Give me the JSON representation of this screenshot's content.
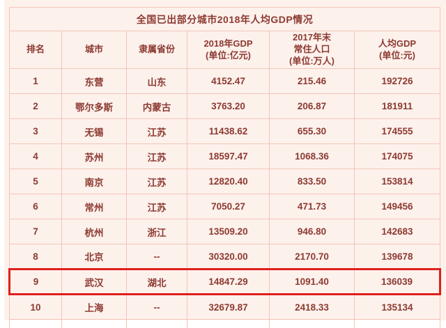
{
  "chart_data": {
    "type": "table",
    "title": "全国已出部分城市2018年人均GDP情况",
    "columns": [
      "排名",
      "城市",
      "隶属省份",
      "2018年GDP\n(单位:亿元)",
      "2017年末\n常住人口\n(单位:万人)",
      "人均GDP\n(单位:元)"
    ],
    "rows": [
      {
        "rank": "1",
        "city": "东营",
        "province": "山东",
        "gdp_2018": "4152.47",
        "pop_2017": "215.46",
        "gdp_per_capita": "192726"
      },
      {
        "rank": "2",
        "city": "鄂尔多斯",
        "province": "内蒙古",
        "gdp_2018": "3763.20",
        "pop_2017": "206.87",
        "gdp_per_capita": "181911"
      },
      {
        "rank": "3",
        "city": "无锡",
        "province": "江苏",
        "gdp_2018": "11438.62",
        "pop_2017": "655.30",
        "gdp_per_capita": "174555"
      },
      {
        "rank": "4",
        "city": "苏州",
        "province": "江苏",
        "gdp_2018": "18597.47",
        "pop_2017": "1068.36",
        "gdp_per_capita": "174075"
      },
      {
        "rank": "5",
        "city": "南京",
        "province": "江苏",
        "gdp_2018": "12820.40",
        "pop_2017": "833.50",
        "gdp_per_capita": "153814"
      },
      {
        "rank": "6",
        "city": "常州",
        "province": "江苏",
        "gdp_2018": "7050.27",
        "pop_2017": "471.73",
        "gdp_per_capita": "149456"
      },
      {
        "rank": "7",
        "city": "杭州",
        "province": "浙江",
        "gdp_2018": "13509.20",
        "pop_2017": "946.80",
        "gdp_per_capita": "142683"
      },
      {
        "rank": "8",
        "city": "北京",
        "province": "--",
        "gdp_2018": "30320.00",
        "pop_2017": "2170.70",
        "gdp_per_capita": "139678"
      },
      {
        "rank": "9",
        "city": "武汉",
        "province": "湖北",
        "gdp_2018": "14847.29",
        "pop_2017": "1091.40",
        "gdp_per_capita": "136039"
      },
      {
        "rank": "10",
        "city": "上海",
        "province": "--",
        "gdp_2018": "32679.87",
        "pop_2017": "2418.33",
        "gdp_per_capita": "135134"
      }
    ],
    "highlight": {
      "rank": "9",
      "city": "武汉"
    },
    "layout_hints": {
      "grid": "on",
      "highlight_style": "red-border"
    }
  },
  "colors": {
    "page_background": "#fdf1ec",
    "cell_border": "#f3c5b8",
    "text": "#8c3a31",
    "highlight_border": "#e01f1b"
  }
}
